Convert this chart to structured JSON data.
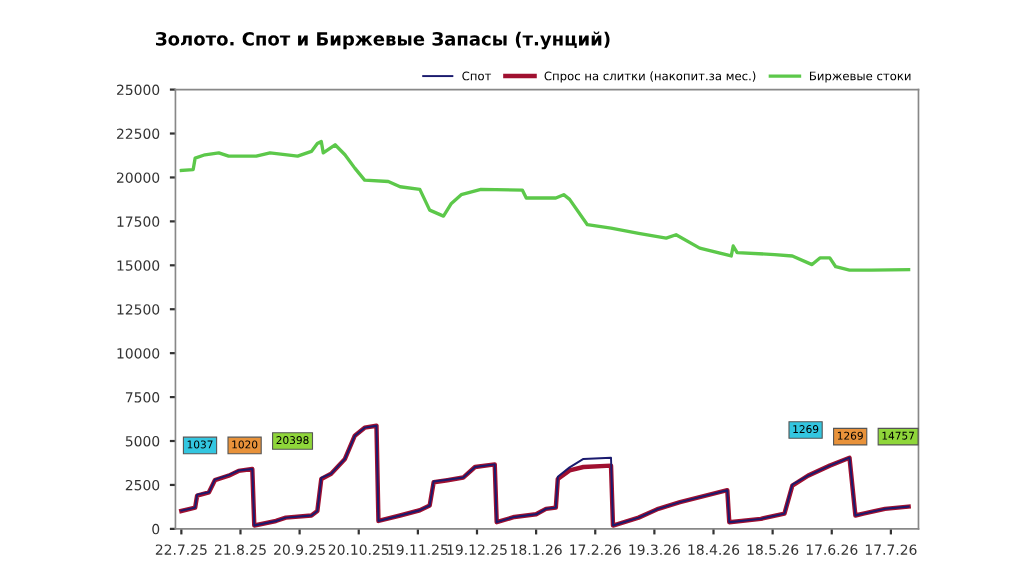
{
  "chart_data": {
    "type": "line",
    "title": "Золото. Спот и Биржевые Запасы (т.унций)",
    "series": [
      {
        "name": "Спот",
        "color": "#1a1a6e",
        "x": [
          "2025-07-22",
          "2025-07-29",
          "2025-07-30",
          "2025-08-05",
          "2025-08-08",
          "2025-08-15",
          "2025-08-20",
          "2025-08-27",
          "2025-08-28",
          "2025-09-08",
          "2025-09-13",
          "2025-09-26",
          "2025-09-29",
          "2025-10-01",
          "2025-10-06",
          "2025-10-13",
          "2025-10-18",
          "2025-10-23",
          "2025-10-29",
          "2025-10-30",
          "2025-11-10",
          "2025-11-20",
          "2025-11-25",
          "2025-11-27",
          "2025-12-04",
          "2025-12-12",
          "2025-12-18",
          "2025-12-28",
          "2025-12-29",
          "2026-01-07",
          "2026-01-18",
          "2026-01-23",
          "2026-01-28",
          "2026-01-29",
          "2026-02-04",
          "2026-02-11",
          "2026-02-25",
          "2026-02-26",
          "2026-03-11",
          "2026-03-21",
          "2026-04-01",
          "2026-04-14",
          "2026-04-25",
          "2026-04-26",
          "2026-05-12",
          "2026-05-24",
          "2026-05-28",
          "2026-06-05",
          "2026-06-16",
          "2026-06-26",
          "2026-06-29",
          "2026-07-03",
          "2026-07-14",
          "2026-07-26"
        ],
        "values": [
          1037,
          1210,
          1950,
          2080,
          2800,
          3060,
          3320,
          3410,
          190,
          450,
          640,
          760,
          1020,
          2900,
          3140,
          3980,
          5300,
          5760,
          5870,
          450,
          760,
          1060,
          1330,
          2700,
          2800,
          2920,
          3520,
          3670,
          380,
          680,
          830,
          1140,
          1210,
          2960,
          3500,
          3980,
          4050,
          190,
          640,
          1140,
          1520,
          1890,
          2200,
          380,
          570,
          870,
          2520,
          3030,
          3600,
          4050,
          760,
          870,
          1140,
          1269
        ]
      },
      {
        "name": "Спрос на слитки (накопит.за мес.)",
        "color": "#a01030",
        "x": [
          "2025-07-22",
          "2025-07-29",
          "2025-07-30",
          "2025-08-05",
          "2025-08-08",
          "2025-08-15",
          "2025-08-20",
          "2025-08-27",
          "2025-08-28",
          "2025-09-08",
          "2025-09-13",
          "2025-09-26",
          "2025-09-29",
          "2025-10-01",
          "2025-10-06",
          "2025-10-13",
          "2025-10-18",
          "2025-10-23",
          "2025-10-29",
          "2025-10-30",
          "2025-11-10",
          "2025-11-20",
          "2025-11-25",
          "2025-11-27",
          "2025-12-04",
          "2025-12-12",
          "2025-12-18",
          "2025-12-28",
          "2025-12-29",
          "2026-01-07",
          "2026-01-18",
          "2026-01-23",
          "2026-01-28",
          "2026-01-29",
          "2026-02-04",
          "2026-02-11",
          "2026-02-25",
          "2026-02-26",
          "2026-03-11",
          "2026-03-21",
          "2026-04-01",
          "2026-04-14",
          "2026-04-25",
          "2026-04-26",
          "2026-05-12",
          "2026-05-24",
          "2026-05-28",
          "2026-06-05",
          "2026-06-16",
          "2026-06-26",
          "2026-06-29",
          "2026-07-03",
          "2026-07-14",
          "2026-07-26"
        ],
        "values": [
          1020,
          1210,
          1890,
          2080,
          2770,
          3030,
          3300,
          3410,
          190,
          450,
          640,
          760,
          1020,
          2840,
          3140,
          3980,
          5300,
          5760,
          5870,
          450,
          760,
          1060,
          1330,
          2650,
          2770,
          2920,
          3520,
          3670,
          380,
          680,
          830,
          1140,
          1210,
          2840,
          3330,
          3520,
          3600,
          190,
          640,
          1140,
          1520,
          1890,
          2200,
          380,
          570,
          870,
          2460,
          3030,
          3600,
          4050,
          760,
          870,
          1140,
          1269
        ]
      },
      {
        "name": "Биржевые стоки",
        "color": "#5cc84a",
        "x": [
          "2025-07-22",
          "2025-07-28",
          "2025-07-29",
          "2025-08-03",
          "2025-08-10",
          "2025-08-15",
          "2025-08-29",
          "2025-09-05",
          "2025-09-19",
          "2025-09-26",
          "2025-09-29",
          "2025-10-01",
          "2025-10-02",
          "2025-10-08",
          "2025-10-13",
          "2025-10-18",
          "2025-10-23",
          "2025-11-04",
          "2025-11-10",
          "2025-11-20",
          "2025-11-25",
          "2025-12-02",
          "2025-12-06",
          "2025-12-11",
          "2025-12-21",
          "2026-01-11",
          "2026-01-13",
          "2026-01-28",
          "2026-02-01",
          "2026-02-04",
          "2026-02-13",
          "2026-02-25",
          "2026-03-11",
          "2026-03-25",
          "2026-03-30",
          "2026-04-11",
          "2026-04-27",
          "2026-04-28",
          "2026-04-30",
          "2026-05-19",
          "2026-05-28",
          "2026-06-07",
          "2026-06-11",
          "2026-06-16",
          "2026-06-19",
          "2026-06-26",
          "2026-07-07",
          "2026-07-26"
        ],
        "values": [
          20398,
          20450,
          21100,
          21290,
          21400,
          21210,
          21210,
          21400,
          21210,
          21480,
          21930,
          22050,
          21400,
          21860,
          21290,
          20530,
          19850,
          19770,
          19470,
          19320,
          18140,
          17800,
          18520,
          19020,
          19320,
          19280,
          18830,
          18830,
          19020,
          18750,
          17310,
          17120,
          16820,
          16550,
          16740,
          15980,
          15530,
          16100,
          15720,
          15610,
          15530,
          15040,
          15420,
          15420,
          14920,
          14730,
          14730,
          14757
        ]
      }
    ],
    "xlim": [
      "2025-07-19",
      "2026-07-31"
    ],
    "xticks": [
      {
        "value": "2025-07-22",
        "label": "22.7.25"
      },
      {
        "value": "2025-08-21",
        "label": "21.8.25"
      },
      {
        "value": "2025-09-20",
        "label": "20.9.25"
      },
      {
        "value": "2025-10-20",
        "label": "20.10.25"
      },
      {
        "value": "2025-11-19",
        "label": "19.11.25"
      },
      {
        "value": "2025-12-19",
        "label": "19.12.25"
      },
      {
        "value": "2026-01-18",
        "label": "18.1.26"
      },
      {
        "value": "2026-02-17",
        "label": "17.2.26"
      },
      {
        "value": "2026-03-19",
        "label": "19.3.26"
      },
      {
        "value": "2026-04-18",
        "label": "18.4.26"
      },
      {
        "value": "2026-05-18",
        "label": "18.5.26"
      },
      {
        "value": "2026-06-17",
        "label": "17.6.26"
      },
      {
        "value": "2026-07-17",
        "label": "17.7.26"
      }
    ],
    "ylim": [
      0,
      25000
    ],
    "yticks": [
      0,
      2500,
      5000,
      7500,
      10000,
      12500,
      15000,
      17500,
      20000,
      22500,
      25000
    ],
    "grid": false,
    "legend": "top",
    "annotations": [
      "1037",
      "1020",
      "20398",
      "1269",
      "1269",
      "14757"
    ]
  }
}
